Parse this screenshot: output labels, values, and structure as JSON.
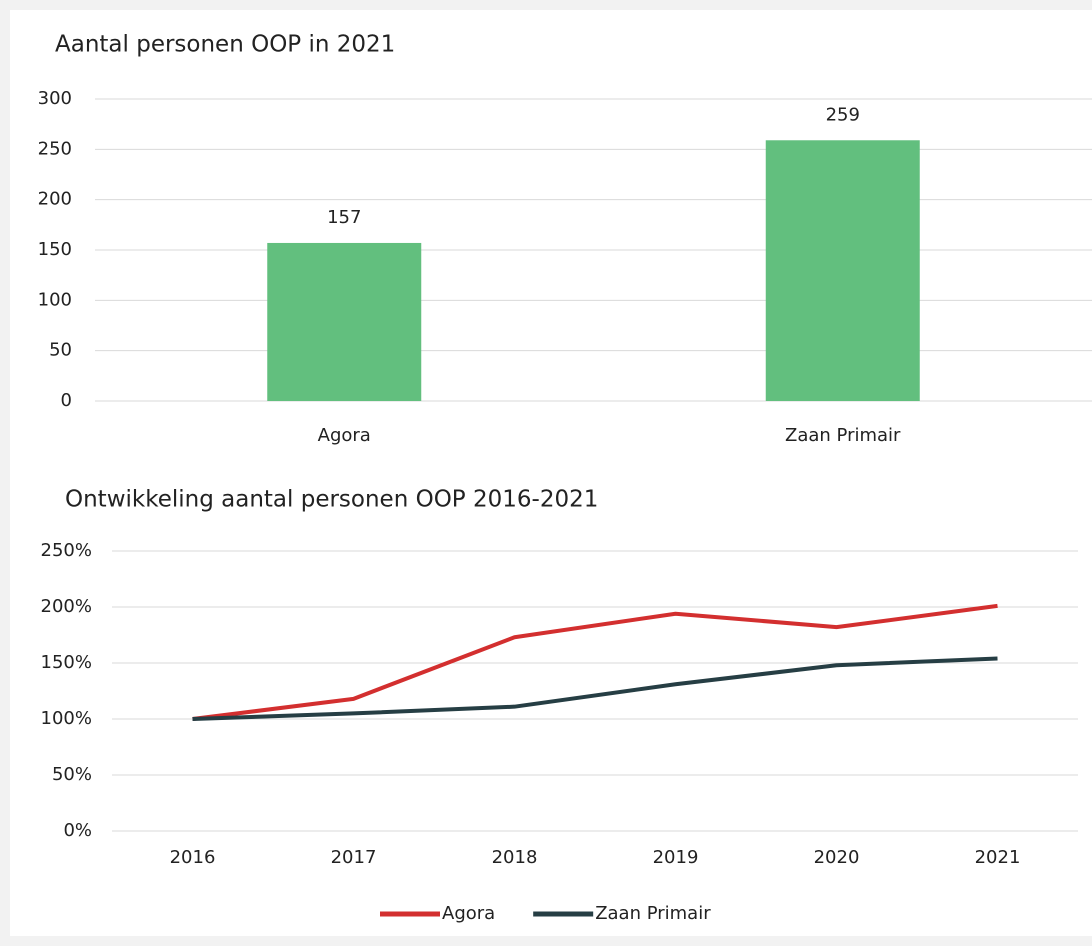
{
  "chart_data": [
    {
      "type": "bar",
      "title": "Aantal personen OOP in 2021",
      "categories": [
        "Agora",
        "Zaan Primair"
      ],
      "values": [
        157,
        259
      ],
      "color": "#62bf7e",
      "data_labels": true,
      "ylim": [
        0,
        300
      ],
      "yticks": [
        0,
        50,
        100,
        150,
        200,
        250,
        300
      ],
      "grid": true
    },
    {
      "type": "line",
      "title": "Ontwikkeling aantal personen OOP 2016-2021",
      "categories": [
        "2016",
        "2017",
        "2018",
        "2019",
        "2020",
        "2021"
      ],
      "series": [
        {
          "name": "Agora",
          "color": "#d32f2f",
          "values": [
            100,
            118,
            173,
            194,
            182,
            201
          ]
        },
        {
          "name": "Zaan Primair",
          "color": "#263e44",
          "values": [
            100,
            105,
            111,
            131,
            148,
            154
          ]
        }
      ],
      "ylim": [
        0,
        250
      ],
      "yticks": [
        {
          "value": 0,
          "label": "0%"
        },
        {
          "value": 50,
          "label": "50%"
        },
        {
          "value": 100,
          "label": "100%"
        },
        {
          "value": 150,
          "label": "150%"
        },
        {
          "value": 200,
          "label": "200%"
        },
        {
          "value": 250,
          "label": "250%"
        }
      ],
      "grid": true,
      "legend": "bottom"
    }
  ]
}
